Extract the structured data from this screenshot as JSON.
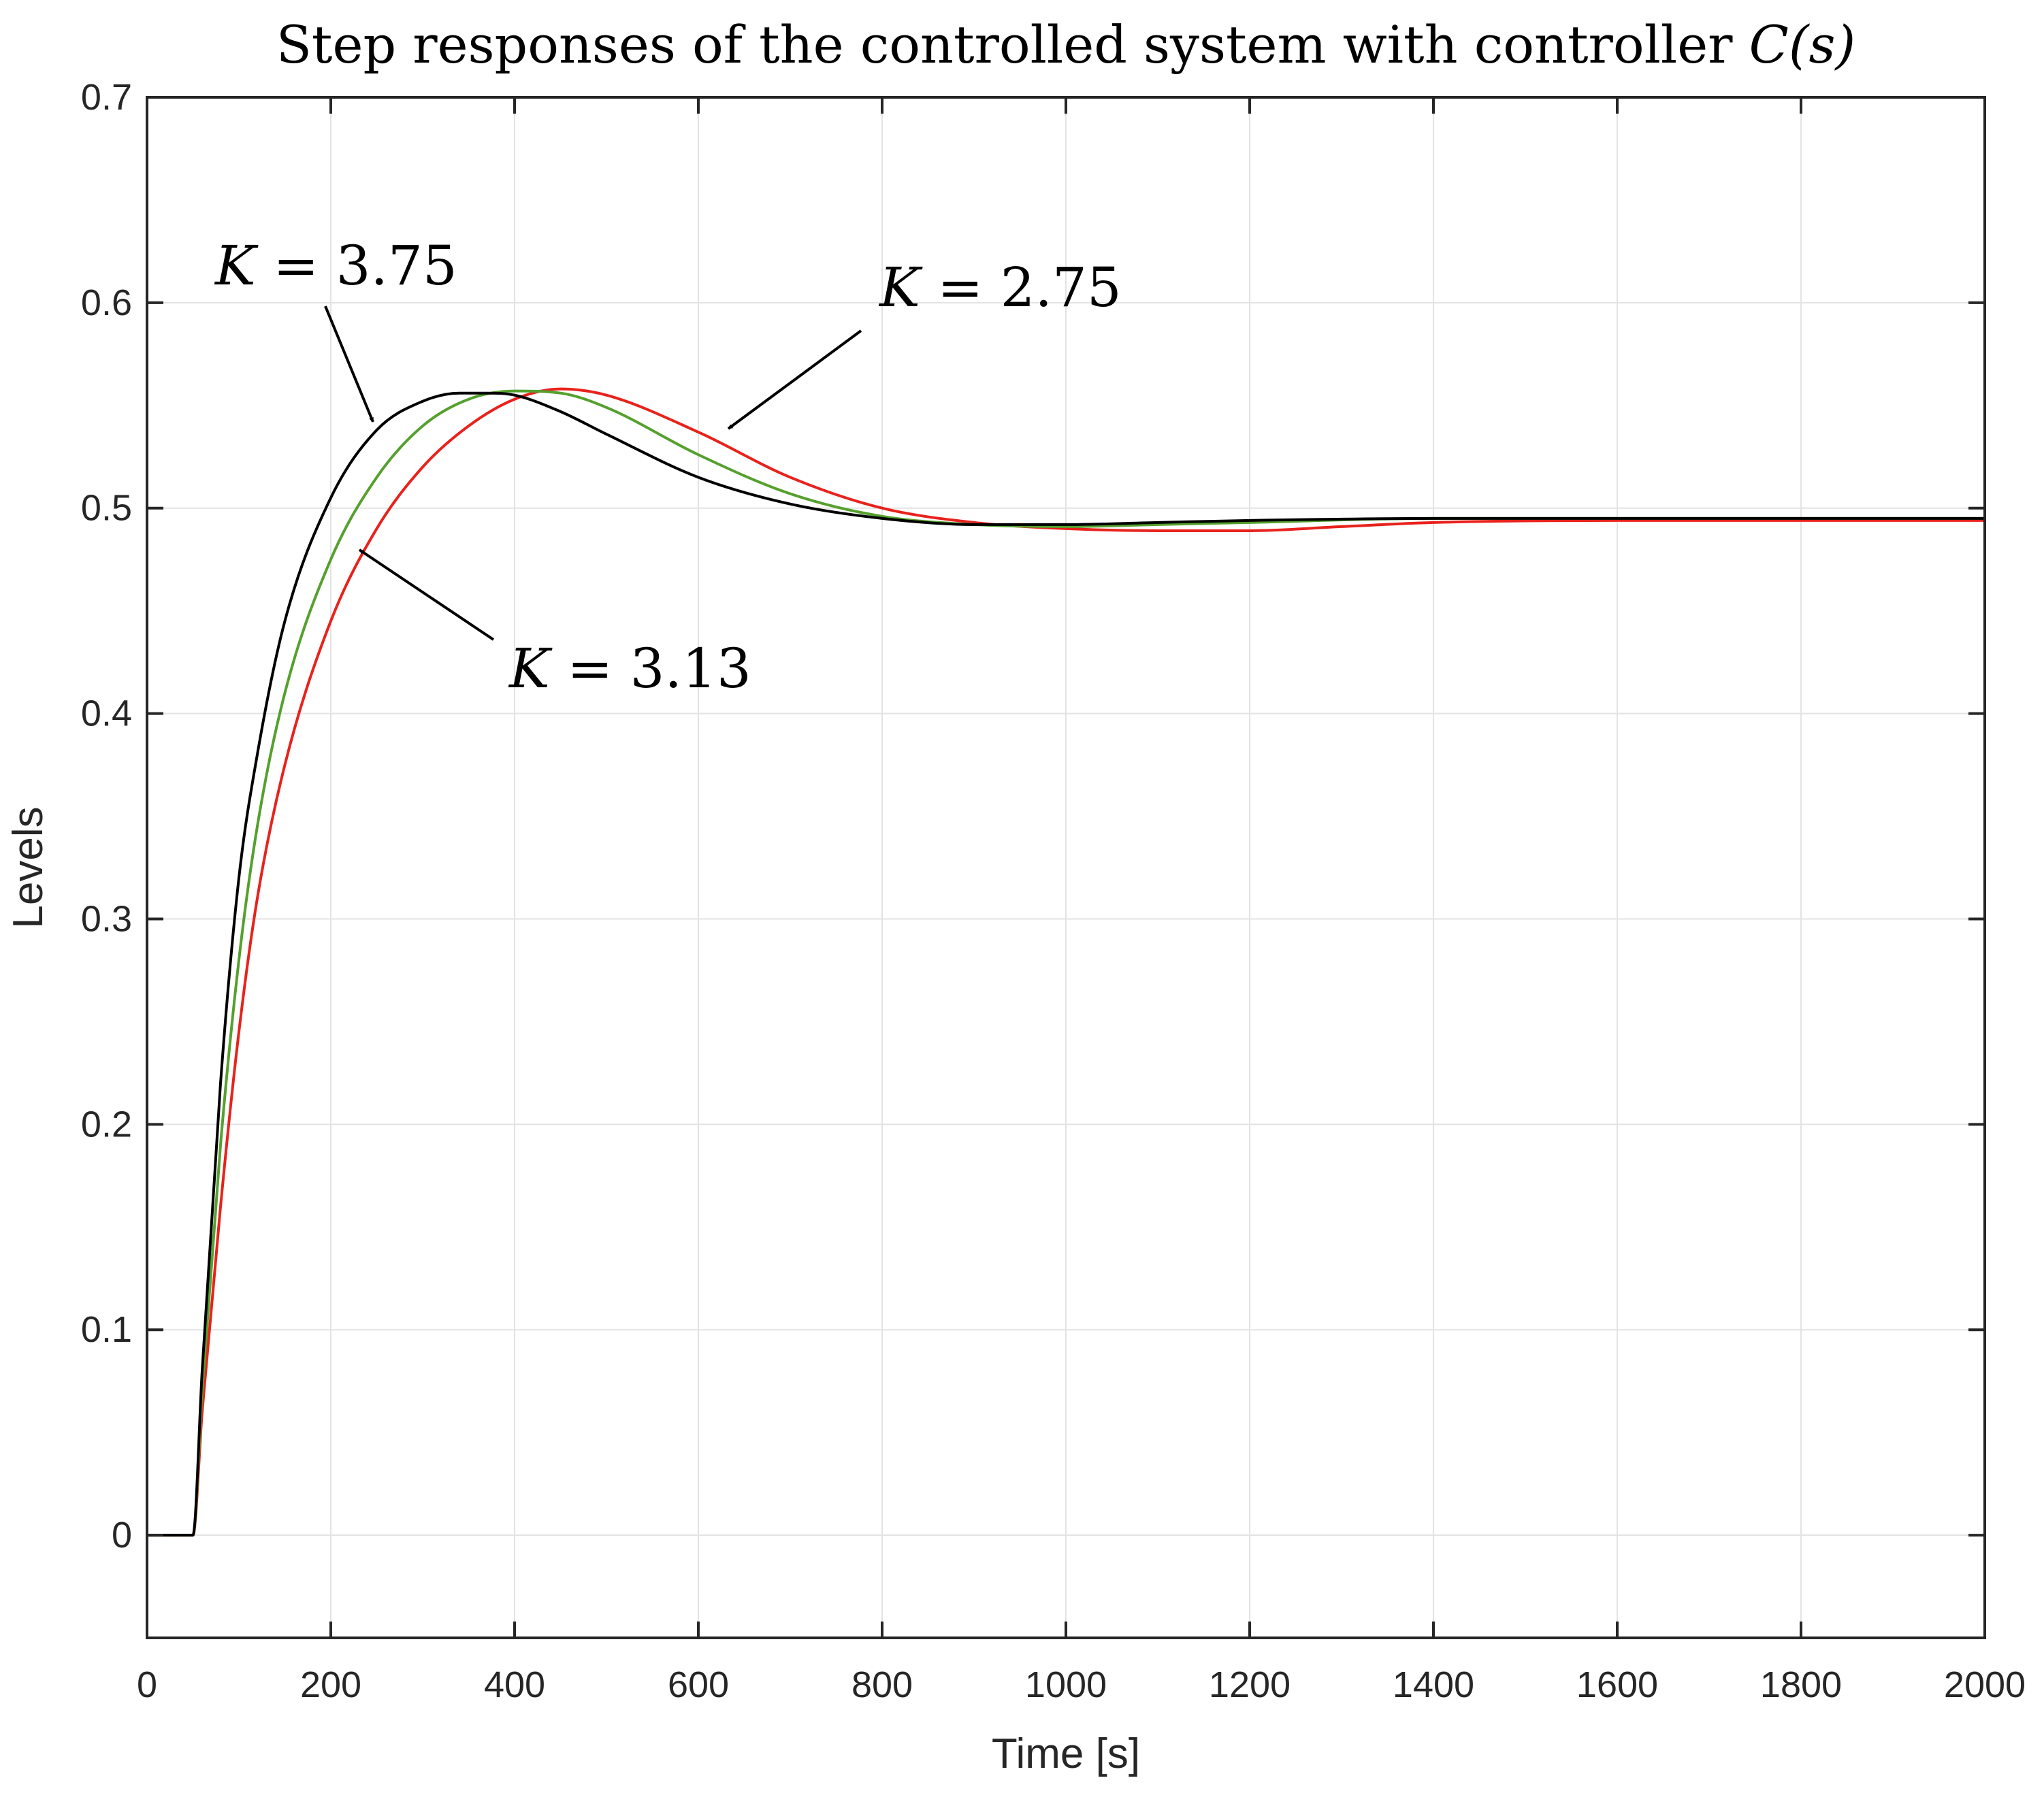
{
  "chart_data": {
    "type": "line",
    "title": {
      "prefix": "Step responses of the controlled system with controller ",
      "math": "C(s)"
    },
    "xlabel": "Time [s]",
    "ylabel": "Levels",
    "xlim": [
      0,
      2000
    ],
    "ylim": [
      -0.05,
      0.7
    ],
    "xticks": [
      0,
      200,
      400,
      600,
      800,
      1000,
      1200,
      1400,
      1600,
      1800,
      2000
    ],
    "yticks": [
      0,
      0.1,
      0.2,
      0.3,
      0.4,
      0.5,
      0.6,
      0.7
    ],
    "xtick_labels": [
      "0",
      "200",
      "400",
      "600",
      "800",
      "1000",
      "1200",
      "1400",
      "1600",
      "1800",
      "2000"
    ],
    "ytick_labels": [
      "0",
      "0.1",
      "0.2",
      "0.3",
      "0.4",
      "0.5",
      "0.6",
      "0.7"
    ],
    "grid": true,
    "series": [
      {
        "name": "K = 3.75",
        "color": "#000000",
        "x": [
          0,
          50,
          60,
          80,
          100,
          120,
          150,
          200,
          250,
          300,
          340,
          370,
          400,
          450,
          500,
          600,
          700,
          800,
          900,
          1000,
          1100,
          1200,
          1400,
          1600,
          2000
        ],
        "y": [
          0,
          0,
          0.08,
          0.22,
          0.32,
          0.38,
          0.445,
          0.505,
          0.538,
          0.552,
          0.556,
          0.556,
          0.555,
          0.547,
          0.536,
          0.515,
          0.502,
          0.495,
          0.492,
          0.492,
          0.493,
          0.494,
          0.495,
          0.495,
          0.495
        ]
      },
      {
        "name": "K = 3.13",
        "color": "#55a02e",
        "x": [
          0,
          50,
          60,
          80,
          100,
          120,
          150,
          200,
          250,
          300,
          350,
          400,
          450,
          500,
          600,
          700,
          800,
          900,
          1000,
          1100,
          1200,
          1400,
          1600,
          2000
        ],
        "y": [
          0,
          0,
          0.07,
          0.19,
          0.28,
          0.345,
          0.41,
          0.475,
          0.515,
          0.54,
          0.553,
          0.557,
          0.556,
          0.549,
          0.526,
          0.507,
          0.496,
          0.492,
          0.491,
          0.492,
          0.493,
          0.495,
          0.495,
          0.495
        ]
      },
      {
        "name": "K = 2.75",
        "color": "#e8221c",
        "x": [
          0,
          50,
          60,
          80,
          100,
          120,
          150,
          200,
          250,
          300,
          350,
          400,
          450,
          500,
          600,
          700,
          800,
          900,
          1000,
          1100,
          1200,
          1300,
          1400,
          1600,
          2000
        ],
        "y": [
          0,
          0,
          0.06,
          0.16,
          0.245,
          0.31,
          0.375,
          0.445,
          0.49,
          0.52,
          0.54,
          0.553,
          0.558,
          0.555,
          0.537,
          0.515,
          0.5,
          0.493,
          0.49,
          0.489,
          0.489,
          0.491,
          0.493,
          0.494,
          0.494
        ]
      }
    ],
    "annotations": [
      {
        "var": "K",
        "eq": " = ",
        "value": "3.75",
        "series": "K = 3.75",
        "points_to": [
          250,
          0.54
        ]
      },
      {
        "var": "K",
        "eq": " = ",
        "value": "2.75",
        "series": "K = 2.75",
        "points_to": [
          630,
          0.538
        ]
      },
      {
        "var": "K",
        "eq": " = ",
        "value": "3.13",
        "series": "K = 3.13",
        "points_to": [
          230,
          0.485
        ]
      }
    ]
  }
}
